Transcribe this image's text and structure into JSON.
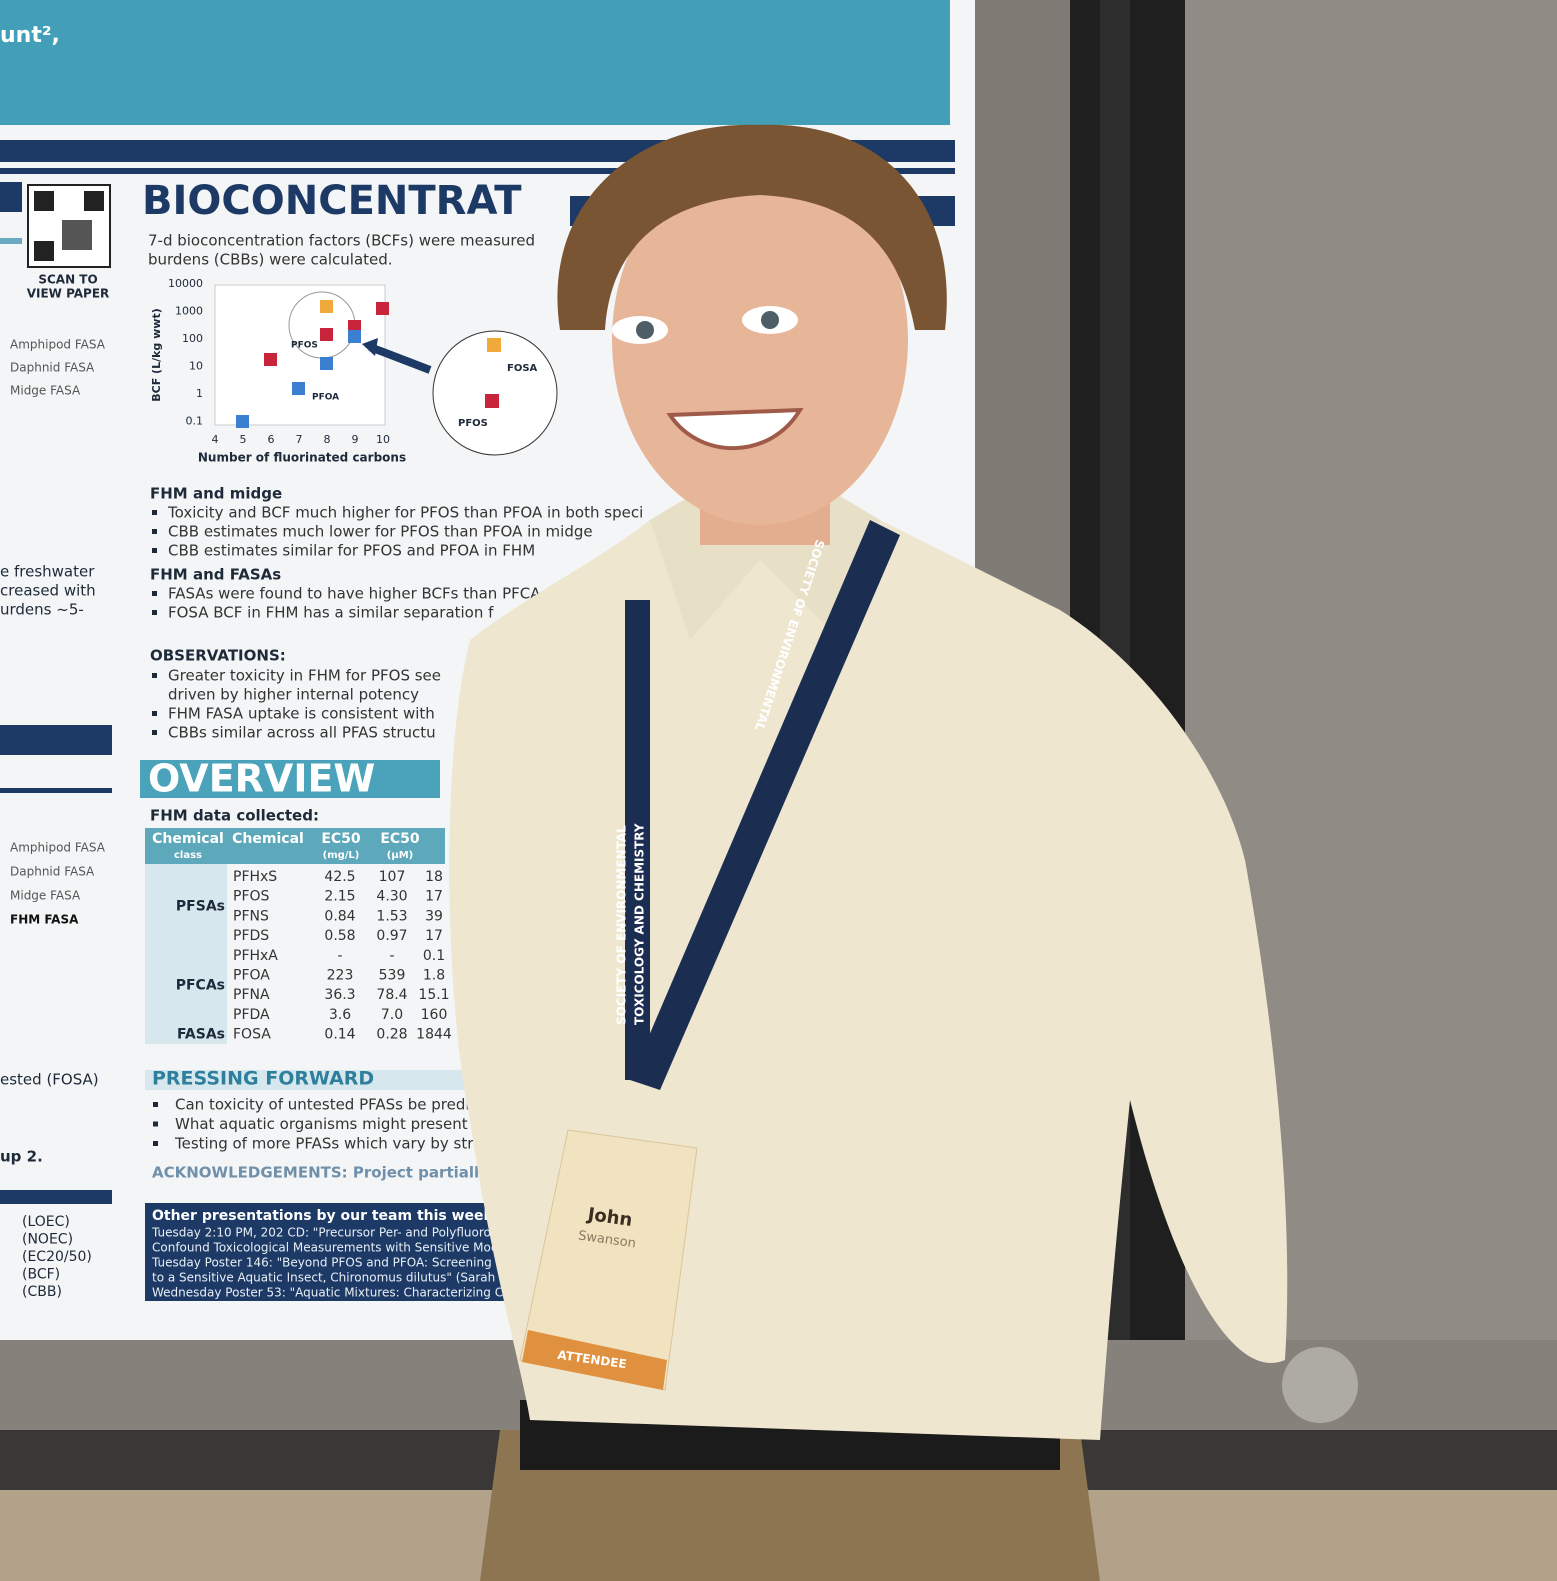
{
  "poster": {
    "header_fragment": "unt²,",
    "qr_caption": [
      "SCAN TO",
      "VIEW PAPER"
    ],
    "left_fragments": [
      "e freshwater",
      "creased with",
      "urdens ~5-",
      "ested (FOSA)",
      "up 2."
    ],
    "legend_top": [
      "Amphipod FASA",
      "Daphnid FASA",
      "Midge FASA"
    ],
    "legend_bottom": [
      "Amphipod FASA",
      "Daphnid FASA",
      "Midge FASA",
      "FHM FASA"
    ],
    "abbreviations": [
      "(LOEC)",
      "(NOEC)",
      "(EC20/50)",
      "(BCF)",
      "(CBB)"
    ],
    "bioconcentration": {
      "title": "BIOCONCENTRAT",
      "intro": [
        "7-d bioconcentration factors (BCFs) were measured",
        "burdens (CBBs) were calculated."
      ],
      "plot": {
        "y_label": "BCF (L/kg wwt)",
        "y_ticks": [
          "10000",
          "1000",
          "100",
          "10",
          "1",
          "0.1"
        ],
        "x_ticks": [
          "4",
          "5",
          "6",
          "7",
          "8",
          "9",
          "10"
        ],
        "x_label": "Number of fluorinated carbons",
        "labels": [
          "PFOS",
          "PFOA"
        ],
        "inset_labels": [
          "FOSA",
          "PFOS"
        ]
      },
      "fhm_midge": {
        "heading": "FHM and midge",
        "bullets": [
          "Toxicity and BCF much higher for PFOS than PFOA in both speci",
          "CBB estimates much lower for PFOS than PFOA in midge",
          "CBB estimates similar for PFOS and PFOA in FHM"
        ]
      },
      "fhm_fasas": {
        "heading": "FHM and FASAs",
        "bullets": [
          "FASAs were found to have higher BCFs than PFCA",
          "FOSA BCF in FHM has a similar separation f"
        ]
      },
      "observations": {
        "heading": "OBSERVATIONS:",
        "lines": [
          "Greater toxicity in FHM for PFOS see",
          "driven by higher internal potency",
          "FHM FASA uptake is consistent with",
          "CBBs similar across all PFAS structu"
        ]
      }
    },
    "overview": {
      "title": "OVERVIEW",
      "subtitle": "FHM data collected:",
      "table": {
        "header": [
          [
            "Chemical",
            "class"
          ],
          [
            "Chemical"
          ],
          [
            "EC50",
            "(mg/L)"
          ],
          [
            "EC50",
            "(µM)"
          ]
        ],
        "groups": [
          {
            "class": "PFSAs",
            "rows": [
              [
                "PFHxS",
                "42.5",
                "107",
                "18"
              ],
              [
                "PFOS",
                "2.15",
                "4.30",
                "17"
              ],
              [
                "PFNS",
                "0.84",
                "1.53",
                "39"
              ],
              [
                "PFDS",
                "0.58",
                "0.97",
                "17"
              ]
            ]
          },
          {
            "class": "PFCAs",
            "rows": [
              [
                "PFHxA",
                "-",
                "-",
                "0.1"
              ],
              [
                "PFOA",
                "223",
                "539",
                "1.8"
              ],
              [
                "PFNA",
                "36.3",
                "78.4",
                "15.1"
              ],
              [
                "PFDA",
                "3.6",
                "7.0",
                "160"
              ]
            ]
          },
          {
            "class": "FASAs",
            "rows": [
              [
                "FOSA",
                "0.14",
                "0.28",
                "1844"
              ]
            ]
          }
        ]
      }
    },
    "pressing_forward": {
      "title": "PRESSING FORWARD",
      "bullets": [
        "Can toxicity of untested PFASs be predi",
        "What aquatic organisms might present c",
        "Testing of more PFASs which vary by stru"
      ]
    },
    "acknowledgements": "ACKNOWLEDGEMENTS: Project partially",
    "other": {
      "heading": "Other presentations by our team this week:",
      "lines": [
        "Tuesday 2:10 PM, 202 CD: \"Precursor Per- and Polyfluoro",
        "Confound Toxicological Measurements with Sensitive Mode",
        "Tuesday Poster 146: \"Beyond PFOS and PFOA: Screening P",
        "to a Sensitive Aquatic Insect, Chironomus dilutus\" (Sarah Kad",
        "Wednesday Poster 53: \"Aquatic Mixtures: Characterizing Che"
      ]
    }
  },
  "lanyard": [
    "SOCIETY OF ENVIRONMENTAL",
    "TOXICOLOGY AND CHEMISTRY"
  ],
  "badge": {
    "first_name": "John",
    "last_name": "Swanson",
    "role": "ATTENDEE"
  }
}
